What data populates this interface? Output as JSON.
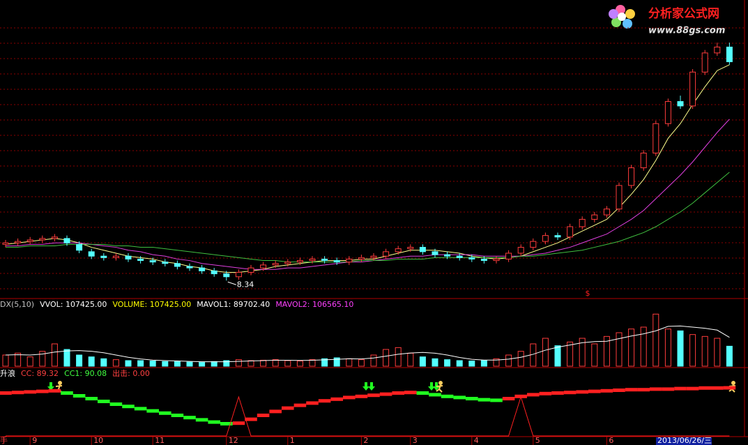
{
  "watermark": {
    "title": "分析家公式网",
    "url": "www.88gs.com"
  },
  "chart_data": [
    {
      "type": "candlestick",
      "grid": true,
      "ylim": [
        7.5,
        25.5
      ],
      "up_color": "#ff3c3c",
      "down_color": "#54ffff",
      "annotation": "8.34",
      "marker": "$",
      "open": [
        10.8,
        10.9,
        11.0,
        11.1,
        11.2,
        11.2,
        10.8,
        10.3,
        10.0,
        9.9,
        10.0,
        9.8,
        9.7,
        9.6,
        9.5,
        9.3,
        9.2,
        9.0,
        8.8,
        8.6,
        8.9,
        9.2,
        9.4,
        9.5,
        9.6,
        9.7,
        9.8,
        9.7,
        9.6,
        9.8,
        9.9,
        10.0,
        10.3,
        10.5,
        10.6,
        10.3,
        10.1,
        10.0,
        9.9,
        9.8,
        9.7,
        9.8,
        10.2,
        10.6,
        11.0,
        11.4,
        11.3,
        12.0,
        12.5,
        12.8,
        13.2,
        14.8,
        16.0,
        17.0,
        19.0,
        20.5,
        20.2,
        22.5,
        23.8,
        24.2
      ],
      "high": [
        11.1,
        11.2,
        11.3,
        11.4,
        11.5,
        11.4,
        11.0,
        10.5,
        10.2,
        10.2,
        10.2,
        10.0,
        9.9,
        9.8,
        9.7,
        9.5,
        9.4,
        9.2,
        9.0,
        9.1,
        9.4,
        9.6,
        9.7,
        9.8,
        9.9,
        10.0,
        10.0,
        9.9,
        10.0,
        10.1,
        10.2,
        10.5,
        10.7,
        10.8,
        10.8,
        10.5,
        10.3,
        10.2,
        10.1,
        10.0,
        10.0,
        10.4,
        10.8,
        11.2,
        11.6,
        11.6,
        12.2,
        12.7,
        13.0,
        13.4,
        15.0,
        16.2,
        17.2,
        19.2,
        20.7,
        20.9,
        22.7,
        24.0,
        24.5,
        24.5
      ],
      "low": [
        10.6,
        10.7,
        10.8,
        10.9,
        11.0,
        10.7,
        10.2,
        9.8,
        9.7,
        9.7,
        9.6,
        9.5,
        9.4,
        9.3,
        9.1,
        9.0,
        8.8,
        8.6,
        8.34,
        8.4,
        8.7,
        9.0,
        9.2,
        9.3,
        9.4,
        9.5,
        9.5,
        9.4,
        9.4,
        9.6,
        9.7,
        9.8,
        10.1,
        10.3,
        10.1,
        9.9,
        9.8,
        9.7,
        9.6,
        9.5,
        9.5,
        9.6,
        10.0,
        10.4,
        10.8,
        11.1,
        11.1,
        11.8,
        12.3,
        12.6,
        13.0,
        14.6,
        15.8,
        16.8,
        18.8,
        20.0,
        20.0,
        22.3,
        23.6,
        23.0
      ],
      "close": [
        10.9,
        11.0,
        11.1,
        11.2,
        11.3,
        10.9,
        10.4,
        10.0,
        9.9,
        10.0,
        9.8,
        9.7,
        9.6,
        9.5,
        9.3,
        9.2,
        9.0,
        8.8,
        8.6,
        8.9,
        9.2,
        9.4,
        9.5,
        9.6,
        9.7,
        9.8,
        9.7,
        9.6,
        9.8,
        9.9,
        10.0,
        10.3,
        10.5,
        10.6,
        10.3,
        10.1,
        10.0,
        9.9,
        9.8,
        9.7,
        9.8,
        10.2,
        10.6,
        11.0,
        11.4,
        11.3,
        12.0,
        12.5,
        12.8,
        13.2,
        14.8,
        16.0,
        17.0,
        19.0,
        20.5,
        20.2,
        22.5,
        23.8,
        24.2,
        23.2
      ],
      "lines": [
        {
          "color": "#ffff8c",
          "values": [
            10.8,
            10.9,
            11.0,
            11.1,
            11.2,
            11.1,
            10.9,
            10.6,
            10.4,
            10.2,
            10.0,
            9.9,
            9.8,
            9.6,
            9.5,
            9.3,
            9.2,
            9.0,
            8.9,
            8.9,
            9.0,
            9.1,
            9.3,
            9.4,
            9.5,
            9.6,
            9.7,
            9.7,
            9.7,
            9.8,
            9.8,
            10.0,
            10.2,
            10.4,
            10.4,
            10.4,
            10.3,
            10.2,
            10.0,
            9.9,
            9.8,
            9.9,
            10.0,
            10.3,
            10.6,
            10.9,
            11.3,
            11.7,
            12.1,
            12.5,
            13.3,
            14.2,
            15.2,
            16.5,
            18.0,
            19.0,
            20.3,
            21.5,
            22.6,
            23.0
          ]
        },
        {
          "color": "#e040e0",
          "values": [
            10.7,
            10.7,
            10.8,
            10.8,
            10.9,
            10.9,
            10.9,
            10.8,
            10.7,
            10.6,
            10.4,
            10.3,
            10.1,
            10.0,
            9.8,
            9.7,
            9.5,
            9.4,
            9.3,
            9.2,
            9.1,
            9.1,
            9.1,
            9.2,
            9.2,
            9.3,
            9.4,
            9.5,
            9.6,
            9.6,
            9.7,
            9.8,
            9.9,
            10.0,
            10.0,
            10.1,
            10.1,
            10.1,
            10.1,
            10.0,
            10.0,
            10.0,
            10.0,
            10.1,
            10.2,
            10.4,
            10.6,
            10.9,
            11.2,
            11.5,
            12.0,
            12.5,
            13.1,
            13.9,
            14.7,
            15.5,
            16.4,
            17.4,
            18.4,
            19.3
          ]
        },
        {
          "color": "#40c040",
          "values": [
            10.6,
            10.6,
            10.7,
            10.7,
            10.7,
            10.8,
            10.8,
            10.8,
            10.8,
            10.7,
            10.7,
            10.6,
            10.6,
            10.5,
            10.4,
            10.3,
            10.2,
            10.1,
            10.0,
            9.9,
            9.8,
            9.7,
            9.7,
            9.6,
            9.6,
            9.6,
            9.6,
            9.6,
            9.6,
            9.7,
            9.7,
            9.7,
            9.8,
            9.8,
            9.8,
            9.9,
            9.9,
            9.9,
            9.9,
            9.9,
            9.9,
            9.9,
            10.0,
            10.0,
            10.1,
            10.2,
            10.3,
            10.4,
            10.6,
            10.8,
            11.0,
            11.3,
            11.6,
            12.0,
            12.5,
            13.0,
            13.6,
            14.3,
            15.0,
            15.7
          ]
        }
      ]
    },
    {
      "type": "bar",
      "ylim": [
        0,
        300000
      ],
      "header": [
        {
          "text": "DX(5,10)",
          "color": "#c0c0c0"
        },
        {
          "text": "VVOL: 107425.00",
          "color": "#ffffff"
        },
        {
          "text": "VOLUME: 107425.00",
          "color": "#ffff00"
        },
        {
          "text": "MAVOL1: 89702.40",
          "color": "#ffffff"
        },
        {
          "text": "MAVOL2: 106565.10",
          "color": "#ff40ff"
        }
      ],
      "values": [
        60000,
        70000,
        50000,
        80000,
        120000,
        90000,
        60000,
        50000,
        40000,
        35000,
        30000,
        30000,
        28000,
        25000,
        25000,
        22000,
        20000,
        25000,
        30000,
        35000,
        30000,
        32000,
        35000,
        30000,
        28000,
        35000,
        40000,
        45000,
        40000,
        35000,
        60000,
        90000,
        100000,
        70000,
        50000,
        40000,
        35000,
        30000,
        28000,
        30000,
        40000,
        60000,
        80000,
        120000,
        150000,
        110000,
        130000,
        150000,
        120000,
        160000,
        180000,
        200000,
        210000,
        280000,
        200000,
        190000,
        170000,
        160000,
        150000,
        107425
      ],
      "lines": [
        {
          "color": "#ffffff",
          "values": [
            60000,
            62000,
            60000,
            65000,
            76000,
            82000,
            84000,
            80000,
            72000,
            60000,
            48000,
            39000,
            33000,
            30000,
            28000,
            26000,
            24000,
            24000,
            24000,
            26000,
            28000,
            30000,
            32000,
            32000,
            31000,
            32000,
            34000,
            37000,
            40000,
            39000,
            44000,
            54000,
            64000,
            71000,
            74000,
            70000,
            60000,
            47000,
            37000,
            33000,
            33000,
            38000,
            48000,
            64000,
            86000,
            102000,
            114000,
            126000,
            132000,
            134000,
            148000,
            162000,
            174000,
            190000,
            214000,
            216000,
            210000,
            204000,
            194000,
            155000
          ]
        }
      ]
    },
    {
      "type": "line",
      "ylim": [
        0,
        100
      ],
      "rise_color": "#ff2020",
      "fall_color": "#20ff20",
      "spike_color": "#ff2020",
      "header": [
        {
          "text": "升浪",
          "color": "#ffffff"
        },
        {
          "text": "CC: 89.32",
          "color": "#ff4040"
        },
        {
          "text": "CC1: 90.08",
          "color": "#40ff40"
        },
        {
          "text": "出击: 0.00",
          "color": "#ff4040"
        }
      ],
      "values": [
        80,
        81,
        82,
        83,
        84,
        80,
        75,
        70,
        65,
        60,
        56,
        52,
        48,
        44,
        40,
        36,
        32,
        28,
        25,
        26,
        33,
        40,
        47,
        53,
        58,
        62,
        66,
        69,
        72,
        74,
        76,
        78,
        80,
        81,
        80,
        77,
        74,
        72,
        70,
        68,
        67,
        70,
        74,
        77,
        79,
        80,
        81,
        82,
        83,
        84,
        85,
        86,
        86,
        87,
        87,
        88,
        88,
        89,
        89,
        89.32
      ],
      "spikes": [
        0,
        0,
        0,
        0,
        0,
        0,
        0,
        0,
        0,
        0,
        0,
        0,
        0,
        0,
        0,
        0,
        0,
        0,
        0,
        70,
        0,
        0,
        0,
        0,
        0,
        0,
        0,
        0,
        0,
        0,
        0,
        0,
        0,
        0,
        0,
        0,
        0,
        0,
        0,
        0,
        0,
        0,
        70,
        0,
        0,
        0,
        0,
        0,
        0,
        0,
        0,
        0,
        0,
        0,
        0,
        0,
        0,
        0,
        0,
        0
      ],
      "x_axis_left": "手",
      "categories": [
        null,
        null,
        "9",
        null,
        null,
        null,
        null,
        "10",
        null,
        null,
        null,
        null,
        "11",
        null,
        null,
        null,
        null,
        null,
        "12",
        null,
        null,
        null,
        null,
        "1",
        null,
        null,
        null,
        null,
        null,
        "2",
        null,
        null,
        null,
        "3",
        null,
        null,
        null,
        null,
        "4",
        null,
        null,
        null,
        null,
        "5",
        null,
        null,
        null,
        null,
        null,
        "6",
        null,
        null,
        null,
        null,
        null,
        null,
        null,
        null,
        null,
        null
      ],
      "cursor_date": "2013/06/26/三"
    }
  ]
}
